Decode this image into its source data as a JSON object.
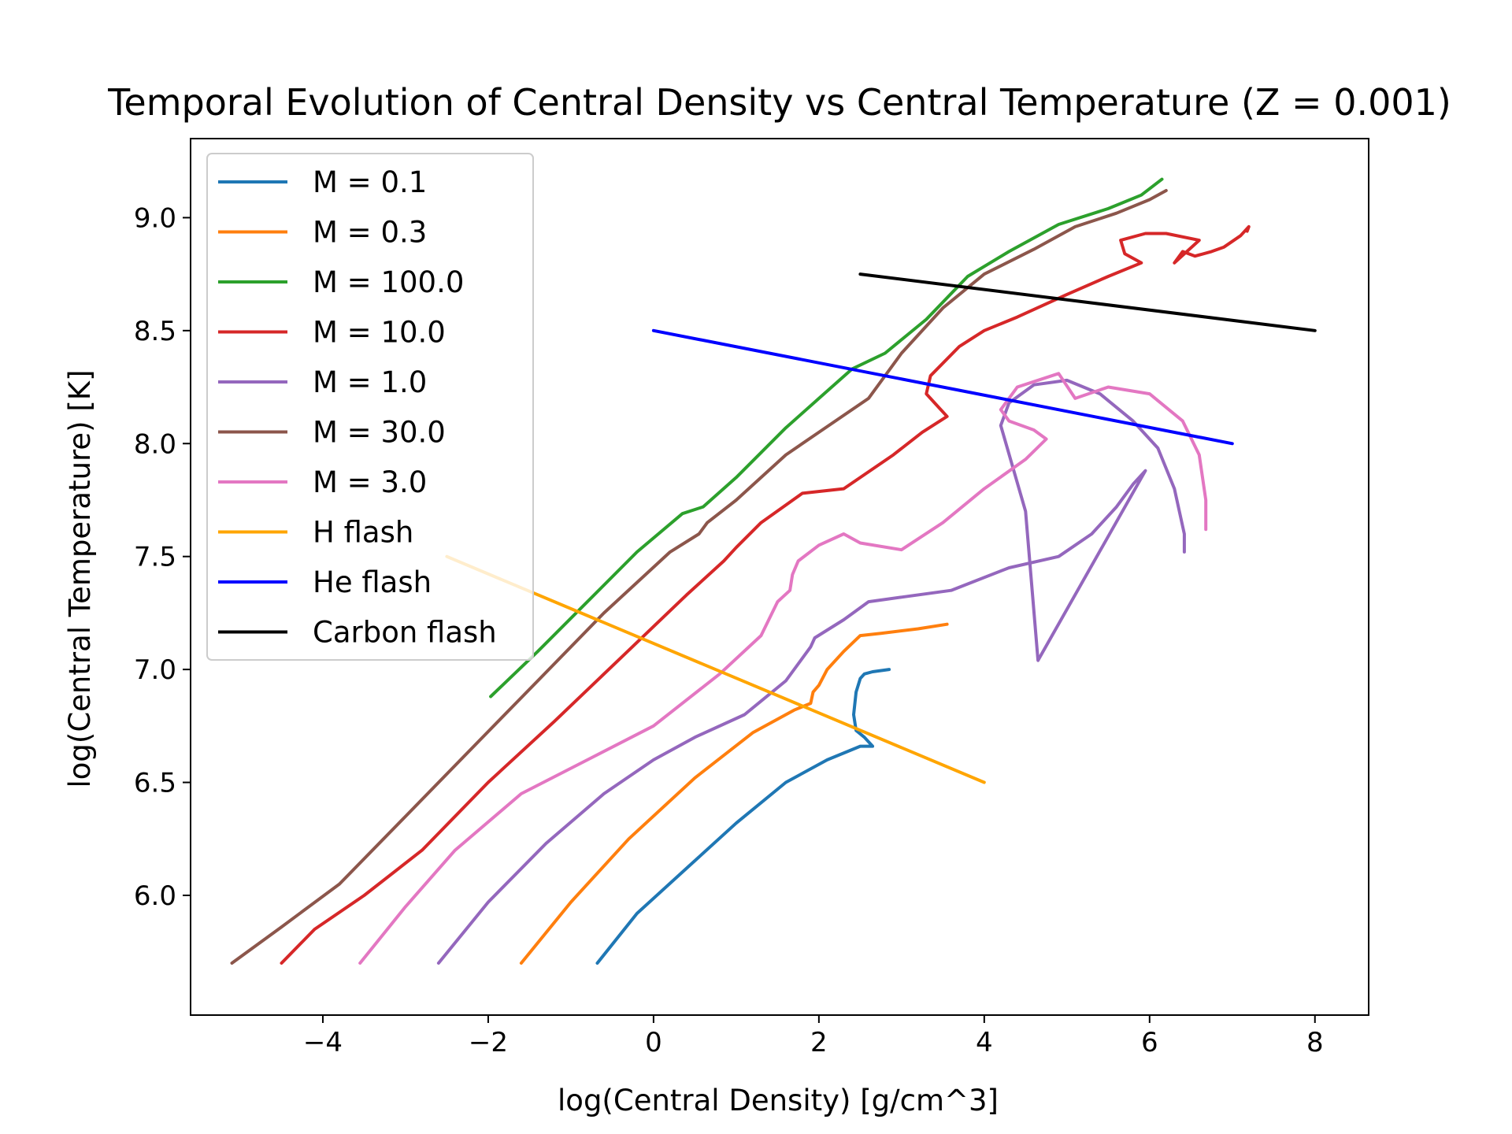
{
  "chart_data": {
    "type": "line",
    "title": "Temporal Evolution of Central Density vs Central Temperature (Z = 0.001)",
    "xlabel": "log(Central Density) [g/cm^3]",
    "ylabel": "log(Central Temperature) [K]",
    "xlim": [
      -5.6,
      8.65
    ],
    "ylim": [
      5.47,
      9.35
    ],
    "xticks": [
      -4,
      -2,
      0,
      2,
      4,
      6,
      8
    ],
    "xtick_labels": [
      "−4",
      "−2",
      "0",
      "2",
      "4",
      "6",
      "8"
    ],
    "yticks": [
      6.0,
      6.5,
      7.0,
      7.5,
      8.0,
      8.5,
      9.0
    ],
    "ytick_labels": [
      "6.0",
      "6.5",
      "7.0",
      "7.5",
      "8.0",
      "8.5",
      "9.0"
    ],
    "grid": false,
    "legend_position": "top-left",
    "series": [
      {
        "name": "M = 0.1",
        "color": "#1f77b4",
        "x": [
          -0.68,
          -0.2,
          0.4,
          1.0,
          1.6,
          2.1,
          2.5,
          2.65,
          2.55,
          2.45,
          2.42,
          2.45,
          2.5,
          2.55,
          2.65,
          2.85
        ],
        "y": [
          5.7,
          5.92,
          6.12,
          6.32,
          6.5,
          6.6,
          6.66,
          6.66,
          6.7,
          6.73,
          6.8,
          6.9,
          6.96,
          6.98,
          6.99,
          7.0
        ]
      },
      {
        "name": "M = 0.3",
        "color": "#ff7f0e",
        "x": [
          -1.6,
          -1.0,
          -0.3,
          0.5,
          1.2,
          1.7,
          1.9,
          1.93,
          2.0,
          2.1,
          2.3,
          2.5,
          2.75,
          3.2,
          3.55
        ],
        "y": [
          5.7,
          5.97,
          6.25,
          6.52,
          6.72,
          6.82,
          6.85,
          6.9,
          6.93,
          7.0,
          7.08,
          7.15,
          7.16,
          7.18,
          7.2
        ]
      },
      {
        "name": "M = 100.0",
        "color": "#2ca02c",
        "x": [
          -1.97,
          -1.4,
          -0.8,
          -0.2,
          0.35,
          0.6,
          1.0,
          1.6,
          2.0,
          2.4,
          2.8,
          3.3,
          3.8,
          4.3,
          4.9,
          5.5,
          5.9,
          6.15
        ],
        "y": [
          6.88,
          7.08,
          7.3,
          7.52,
          7.69,
          7.72,
          7.85,
          8.07,
          8.2,
          8.33,
          8.4,
          8.55,
          8.74,
          8.85,
          8.97,
          9.04,
          9.1,
          9.17
        ]
      },
      {
        "name": "M = 10.0",
        "color": "#d62728",
        "x": [
          -4.5,
          -4.1,
          -3.5,
          -2.8,
          -2.0,
          -1.2,
          -0.4,
          0.4,
          0.85,
          1.0,
          1.3,
          1.8,
          2.3,
          2.9,
          3.25,
          3.55,
          3.4,
          3.3,
          3.35,
          3.7,
          4.0,
          4.4,
          5.0,
          5.5,
          5.9,
          5.7,
          5.65,
          5.95,
          6.2,
          6.6,
          6.3,
          6.4,
          6.55,
          6.75,
          6.9,
          7.1,
          7.2,
          7.18
        ],
        "y": [
          5.7,
          5.85,
          6.0,
          6.2,
          6.5,
          6.77,
          7.05,
          7.33,
          7.48,
          7.54,
          7.65,
          7.78,
          7.8,
          7.95,
          8.05,
          8.12,
          8.18,
          8.22,
          8.3,
          8.43,
          8.5,
          8.56,
          8.66,
          8.74,
          8.8,
          8.84,
          8.9,
          8.93,
          8.93,
          8.9,
          8.8,
          8.85,
          8.83,
          8.85,
          8.87,
          8.92,
          8.96,
          8.94
        ]
      },
      {
        "name": "M = 1.0",
        "color": "#9467bd",
        "x": [
          -2.6,
          -2.0,
          -1.3,
          -0.6,
          0.0,
          0.5,
          1.1,
          1.6,
          1.9,
          1.95,
          2.3,
          2.6,
          3.0,
          3.6,
          4.3,
          4.9,
          5.3,
          5.6,
          5.8,
          5.95,
          4.65,
          4.5,
          4.2,
          4.3,
          4.6,
          5.0,
          5.4,
          5.8,
          6.1,
          6.3,
          6.42,
          6.42
        ],
        "y": [
          5.7,
          5.97,
          6.23,
          6.45,
          6.6,
          6.7,
          6.8,
          6.95,
          7.1,
          7.14,
          7.22,
          7.3,
          7.32,
          7.35,
          7.45,
          7.5,
          7.6,
          7.72,
          7.82,
          7.88,
          7.04,
          7.7,
          8.08,
          8.18,
          8.26,
          8.28,
          8.22,
          8.1,
          7.98,
          7.8,
          7.6,
          7.52
        ]
      },
      {
        "name": "M = 30.0",
        "color": "#8c564b",
        "x": [
          -5.1,
          -4.5,
          -3.8,
          -3.0,
          -2.2,
          -1.4,
          -0.6,
          0.2,
          0.55,
          0.65,
          1.0,
          1.6,
          2.0,
          2.6,
          3.0,
          3.5,
          4.0,
          4.6,
          5.1,
          5.6,
          6.0,
          6.2
        ],
        "y": [
          5.7,
          5.86,
          6.05,
          6.35,
          6.65,
          6.95,
          7.25,
          7.52,
          7.6,
          7.65,
          7.75,
          7.95,
          8.05,
          8.2,
          8.4,
          8.6,
          8.75,
          8.86,
          8.96,
          9.02,
          9.08,
          9.12
        ]
      },
      {
        "name": "M = 3.0",
        "color": "#e377c2",
        "x": [
          -3.55,
          -3.0,
          -2.4,
          -1.6,
          -0.8,
          0.0,
          0.8,
          1.3,
          1.5,
          1.65,
          1.68,
          1.75,
          2.0,
          2.3,
          2.5,
          3.0,
          3.5,
          4.0,
          4.5,
          4.75,
          4.6,
          4.3,
          4.2,
          4.4,
          4.9,
          5.1,
          5.5,
          6.0,
          6.4,
          6.6,
          6.68,
          6.68
        ],
        "y": [
          5.7,
          5.95,
          6.2,
          6.45,
          6.6,
          6.75,
          6.98,
          7.15,
          7.3,
          7.35,
          7.42,
          7.48,
          7.55,
          7.6,
          7.56,
          7.53,
          7.65,
          7.8,
          7.93,
          8.02,
          8.06,
          8.1,
          8.15,
          8.25,
          8.31,
          8.2,
          8.25,
          8.22,
          8.1,
          7.95,
          7.75,
          7.62
        ]
      },
      {
        "name": "H flash",
        "color": "#ffa500",
        "x": [
          -2.5,
          4.0
        ],
        "y": [
          7.5,
          6.5
        ]
      },
      {
        "name": "He flash",
        "color": "#0000ff",
        "x": [
          0.0,
          7.0
        ],
        "y": [
          8.5,
          8.0
        ]
      },
      {
        "name": "Carbon flash",
        "color": "#000000",
        "x": [
          2.5,
          8.0
        ],
        "y": [
          8.75,
          8.5
        ]
      }
    ]
  }
}
